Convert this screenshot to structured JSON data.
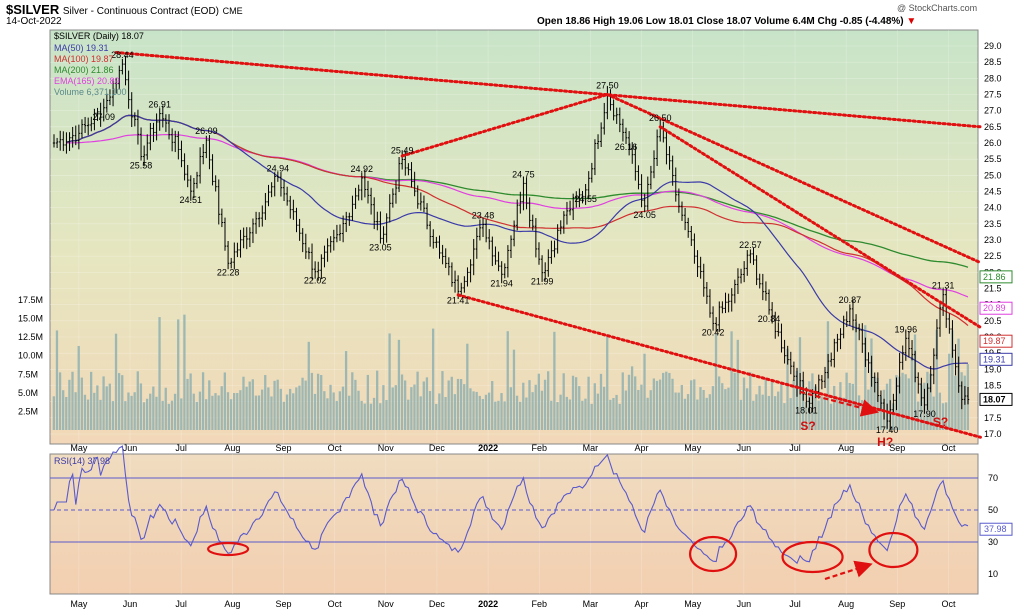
{
  "header": {
    "symbol": "$SILVER",
    "name": "Silver - Continuous Contract (EOD)",
    "exchange": "CME",
    "date": "14-Oct-2022",
    "watermark": "@ StockCharts.com",
    "ohlc": "Open 18.86  High 19.06  Low 18.01  Close 18.07  Volume 6.4M  Chg -0.85 (-4.48%)",
    "chg_arrow": "▼"
  },
  "legend": {
    "main": "$SILVER (Daily) 18.07",
    "ma50": "MA(50) 19.31",
    "ma100": "MA(100) 19.87",
    "ma200": "MA(200) 21.86",
    "ema165": "EMA(165) 20.89",
    "volume": "Volume 6,371,100",
    "rsi": "RSI(14) 37.98"
  },
  "colors": {
    "price": "#000000",
    "ma50": "#3a3aa8",
    "ma100": "#d03030",
    "ma200": "#2e8b2e",
    "ema165": "#e040e0",
    "volume": "#8fb0b0",
    "rsi": "#5a5acc",
    "trend": "#e01010",
    "bg_top": "#c6e2c6",
    "bg_bottom": "#f2d6b8"
  },
  "chart_data": {
    "type": "line",
    "x_labels": [
      "May",
      "Jun",
      "Jul",
      "Aug",
      "Sep",
      "Oct",
      "Nov",
      "Dec",
      "2022",
      "Feb",
      "Mar",
      "Apr",
      "May",
      "Jun",
      "Jul",
      "Aug",
      "Sep",
      "Oct"
    ],
    "price_axis": {
      "ticks": [
        "29.0",
        "28.5",
        "28.0",
        "27.5",
        "27.0",
        "26.5",
        "26.0",
        "25.5",
        "25.0",
        "24.5",
        "24.0",
        "23.5",
        "23.0",
        "22.5",
        "22.0",
        "21.5",
        "21.0",
        "20.5",
        "20.0",
        "19.5",
        "19.0",
        "18.5",
        "18.0",
        "17.5",
        "17.0"
      ],
      "range": [
        17.0,
        29.0
      ]
    },
    "volume_axis": {
      "ticks": [
        "17.5M",
        "15.0M",
        "12.5M",
        "10.0M",
        "7.5M",
        "5.0M",
        "2.5M"
      ],
      "range": [
        0,
        17.5
      ]
    },
    "pivots": [
      {
        "x": 0,
        "price": 26.0
      },
      {
        "x": 8,
        "price": 26.3
      },
      {
        "x": 16,
        "price": 27.09,
        "label": "27.09"
      },
      {
        "x": 22,
        "price": 28.44,
        "label": "28.44"
      },
      {
        "x": 28,
        "price": 25.58,
        "label": "25.58"
      },
      {
        "x": 34,
        "price": 26.91,
        "label": "26.91"
      },
      {
        "x": 40,
        "price": 25.8
      },
      {
        "x": 44,
        "price": 24.51,
        "label": "24.51"
      },
      {
        "x": 49,
        "price": 26.09,
        "label": "26.09"
      },
      {
        "x": 56,
        "price": 22.28,
        "label": "22.28"
      },
      {
        "x": 64,
        "price": 23.5
      },
      {
        "x": 72,
        "price": 24.94,
        "label": "24.94"
      },
      {
        "x": 84,
        "price": 22.02,
        "label": "22.02"
      },
      {
        "x": 92,
        "price": 23.2
      },
      {
        "x": 99,
        "price": 24.92,
        "label": "24.92"
      },
      {
        "x": 105,
        "price": 23.05,
        "label": "23.05"
      },
      {
        "x": 112,
        "price": 25.49,
        "label": "25.49"
      },
      {
        "x": 124,
        "price": 22.6
      },
      {
        "x": 130,
        "price": 21.41,
        "label": "21.41"
      },
      {
        "x": 138,
        "price": 23.48,
        "label": "23.48"
      },
      {
        "x": 144,
        "price": 21.94,
        "label": "21.94"
      },
      {
        "x": 151,
        "price": 24.75,
        "label": "24.75"
      },
      {
        "x": 157,
        "price": 21.99,
        "label": "21.99"
      },
      {
        "x": 165,
        "price": 23.9
      },
      {
        "x": 171,
        "price": 24.55,
        "label": "24.55"
      },
      {
        "x": 178,
        "price": 27.5,
        "label": "27.50"
      },
      {
        "x": 184,
        "price": 26.16,
        "label": "26.16"
      },
      {
        "x": 190,
        "price": 24.05,
        "label": "24.05"
      },
      {
        "x": 195,
        "price": 26.5,
        "label": "26.50"
      },
      {
        "x": 200,
        "price": 24.4
      },
      {
        "x": 206,
        "price": 22.5
      },
      {
        "x": 212,
        "price": 20.42,
        "label": "20.42"
      },
      {
        "x": 218,
        "price": 21.3
      },
      {
        "x": 224,
        "price": 22.57,
        "label": "22.57"
      },
      {
        "x": 230,
        "price": 20.84,
        "label": "20.84"
      },
      {
        "x": 236,
        "price": 19.3
      },
      {
        "x": 242,
        "price": 18.01,
        "label": "18.01"
      },
      {
        "x": 248,
        "price": 18.9
      },
      {
        "x": 256,
        "price": 20.87,
        "label": "20.87"
      },
      {
        "x": 262,
        "price": 19.2
      },
      {
        "x": 268,
        "price": 17.4,
        "label": "17.40"
      },
      {
        "x": 274,
        "price": 19.96,
        "label": "19.96"
      },
      {
        "x": 280,
        "price": 17.9,
        "label": "17.90"
      },
      {
        "x": 286,
        "price": 21.31,
        "label": "21.31"
      },
      {
        "x": 292,
        "price": 18.07
      }
    ],
    "right_labels": [
      "21.86",
      "20.89",
      "19.87",
      "19.31",
      "18.07"
    ],
    "annotations": [
      "S?",
      "H?",
      "S?"
    ],
    "rsi_axis": {
      "ticks": [
        "70",
        "50",
        "30",
        "10"
      ],
      "range": [
        0,
        80
      ]
    }
  }
}
